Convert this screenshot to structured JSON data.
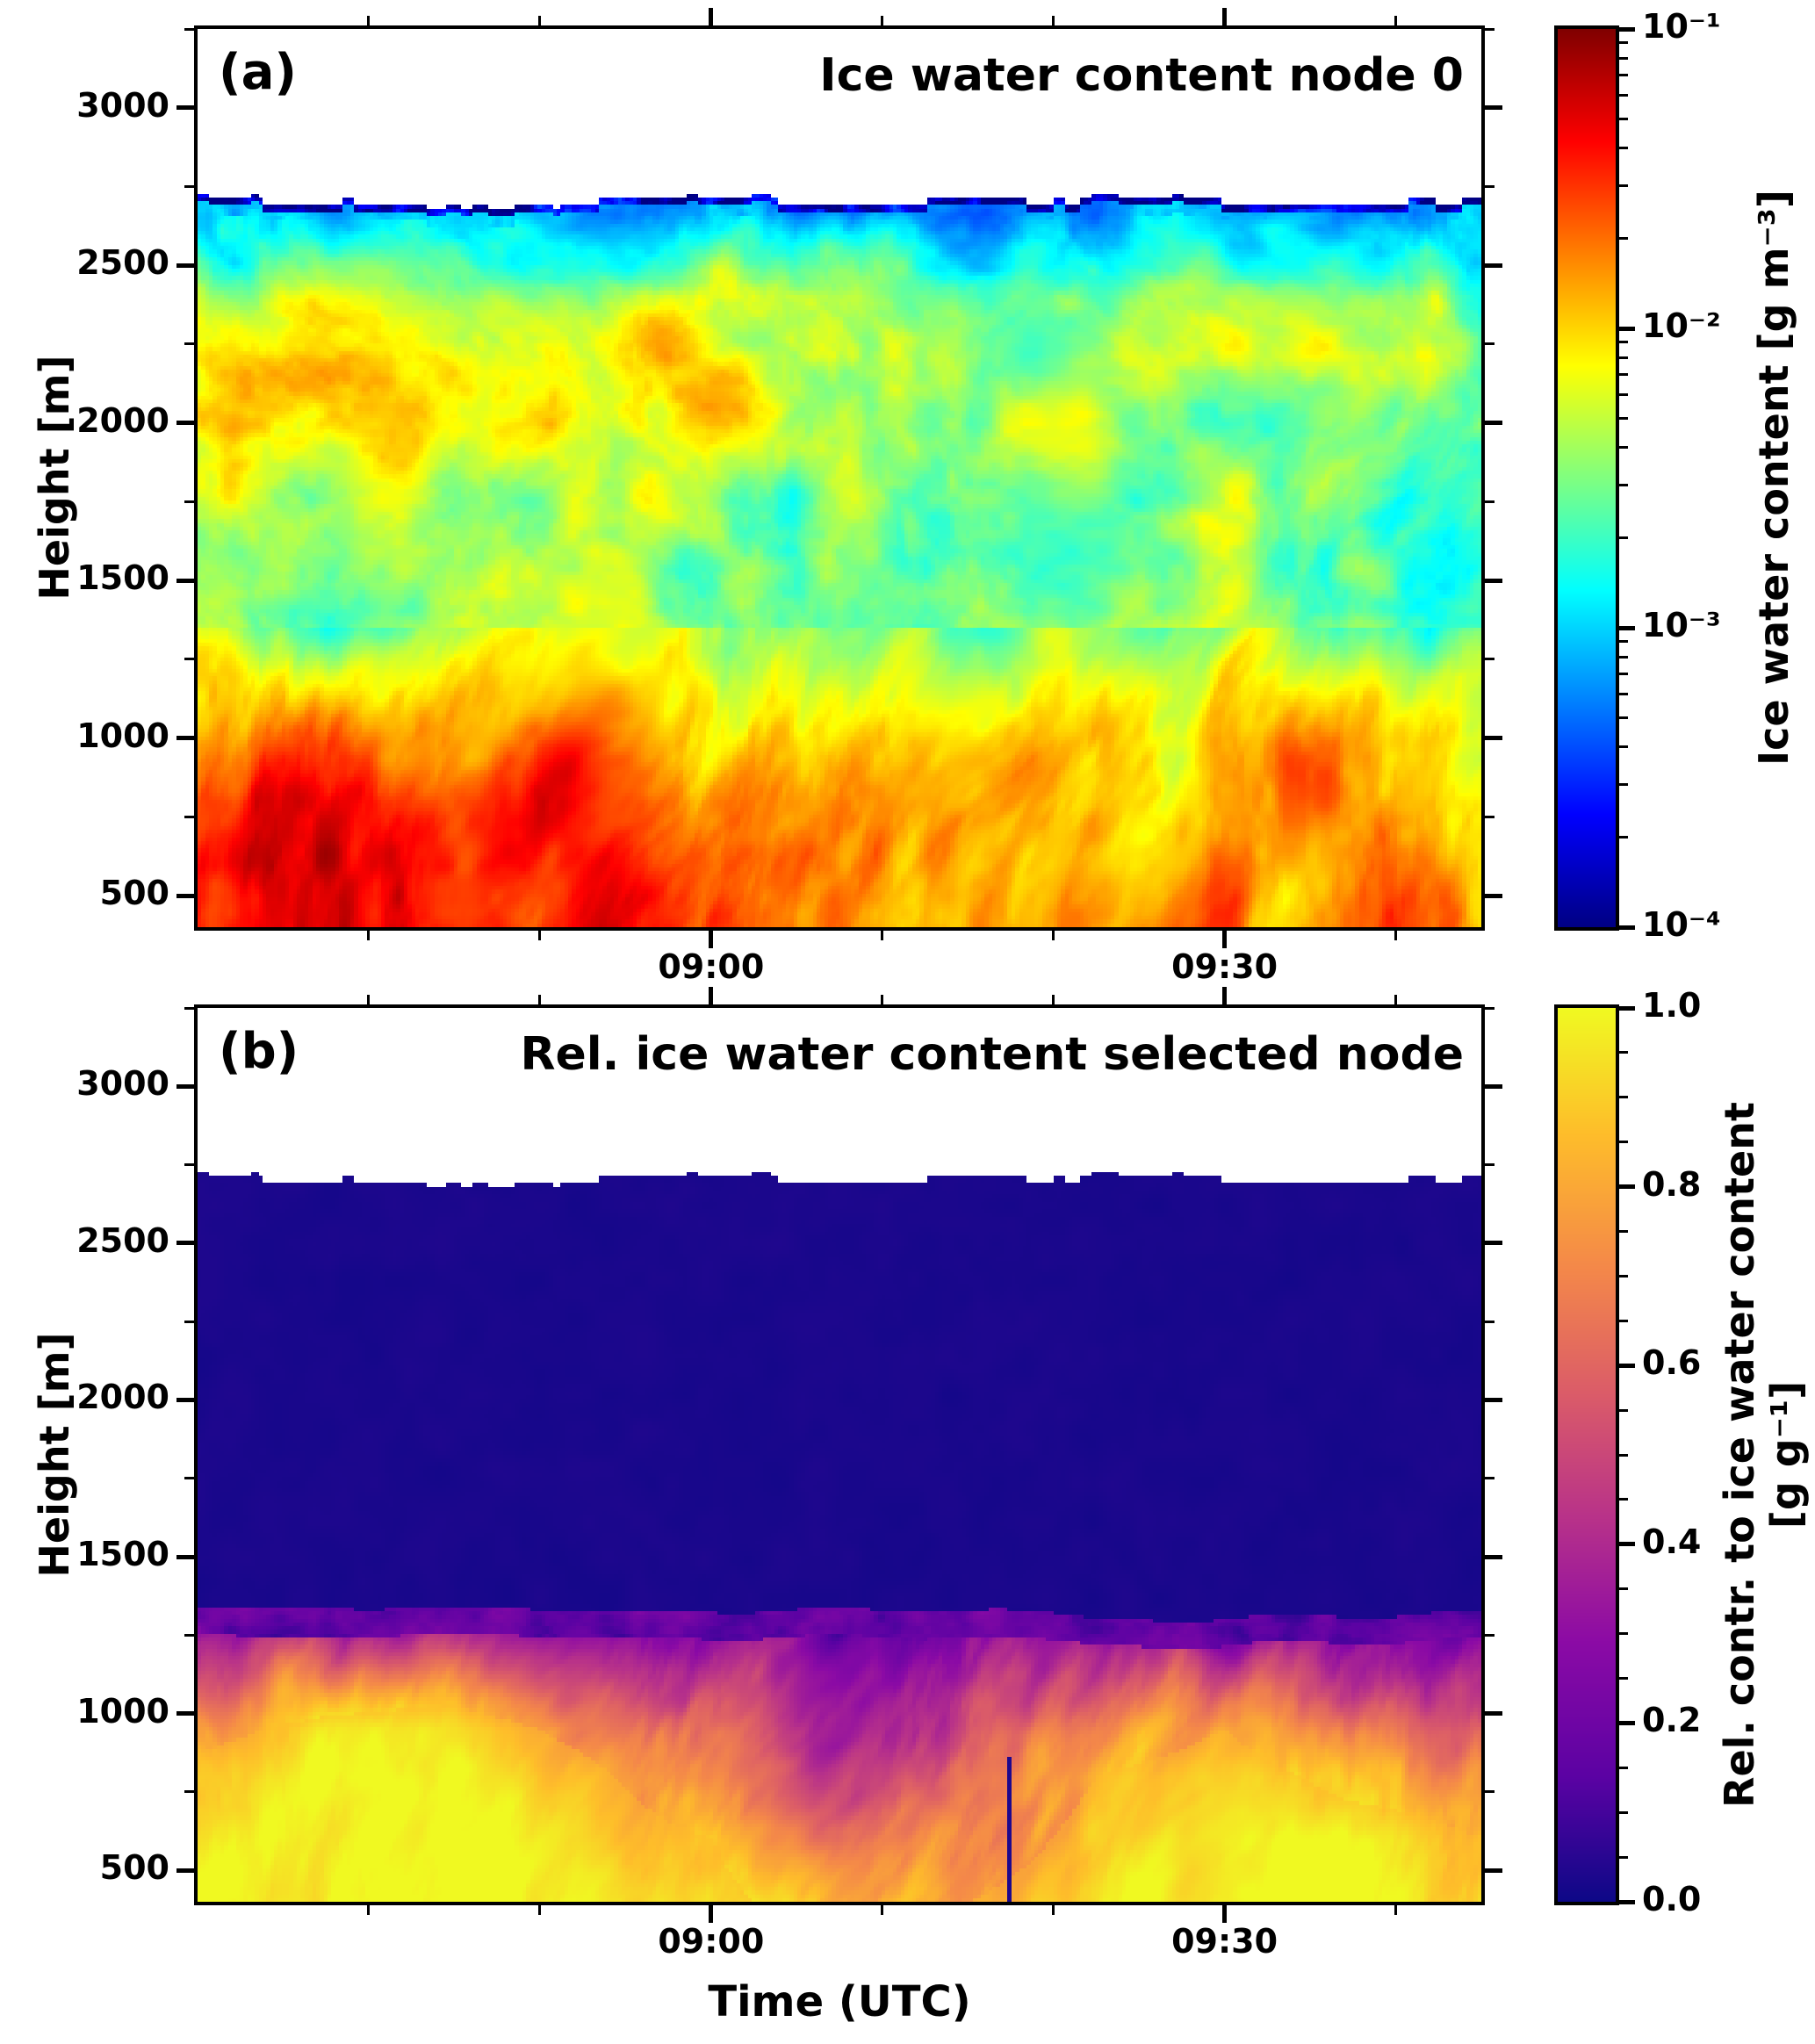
{
  "figure": {
    "background": "#ffffff"
  },
  "x_axis_label": "Time  (UTC)",
  "chart_data": [
    {
      "type": "heatmap",
      "panel_label": "(a)",
      "title": "Ice water content node 0",
      "ylabel": "Height [m]",
      "x_axis": {
        "start_utc": "08:30",
        "end_utc": "09:45",
        "total_minutes": 75,
        "major_ticks": [
          {
            "minutes": 30,
            "label": "09:00"
          },
          {
            "minutes": 60,
            "label": "09:30"
          }
        ],
        "minor_ticks_minutes": [
          10,
          20,
          40,
          50,
          70
        ]
      },
      "y_axis": {
        "lim_m": [
          400,
          3250
        ],
        "major_ticks_m": [
          500,
          1000,
          1500,
          2000,
          2500,
          3000
        ],
        "minor_step_m": 250
      },
      "cloud_top_m": 2700,
      "colorbar": {
        "label": "Ice water content [g m⁻³]",
        "scale": "log10",
        "tick_labels": [
          "10⁻¹",
          "10⁻²",
          "10⁻³",
          "10⁻⁴"
        ],
        "tick_values_log10": [
          -1,
          -2,
          -3,
          -4
        ],
        "vmin_log10": -4,
        "vmax_log10": -1,
        "colormap": "jet",
        "stops": [
          [
            0,
            "#000083"
          ],
          [
            0.125,
            "#0000ff"
          ],
          [
            0.375,
            "#00ffff"
          ],
          [
            0.625,
            "#ffff00"
          ],
          [
            0.875,
            "#ff0000"
          ],
          [
            1,
            "#800000"
          ]
        ]
      },
      "field": {
        "units": "log10(g m-3)",
        "times_min": [
          0,
          7.5,
          15,
          22.5,
          30,
          37.5,
          45,
          52.5,
          60,
          67.5,
          75
        ],
        "heights_m": [
          400,
          600,
          800,
          1000,
          1200,
          1400,
          1600,
          1800,
          2000,
          2200,
          2400,
          2550,
          2660
        ],
        "values": [
          [
            -1.25,
            -1.2,
            -1.25,
            -1.3,
            -1.55,
            -1.7,
            -1.8,
            -1.75,
            -1.8,
            -1.8,
            -1.85
          ],
          [
            -1.3,
            -1.2,
            -1.25,
            -1.35,
            -1.6,
            -1.75,
            -1.85,
            -1.8,
            -1.75,
            -1.85,
            -1.9
          ],
          [
            -1.5,
            -1.35,
            -1.4,
            -1.5,
            -1.7,
            -1.85,
            -1.95,
            -1.9,
            -1.8,
            -1.85,
            -1.95
          ],
          [
            -1.8,
            -1.7,
            -1.75,
            -1.8,
            -1.95,
            -2.05,
            -2.05,
            -2.0,
            -1.85,
            -1.95,
            -2.05
          ],
          [
            -2.1,
            -2.15,
            -2.1,
            -2.15,
            -2.2,
            -2.3,
            -2.3,
            -2.2,
            -2.15,
            -2.2,
            -2.3
          ],
          [
            -2.55,
            -2.8,
            -2.5,
            -2.4,
            -2.45,
            -2.55,
            -2.6,
            -2.5,
            -2.45,
            -2.55,
            -2.85
          ],
          [
            -2.5,
            -2.6,
            -2.45,
            -2.4,
            -2.45,
            -2.55,
            -2.65,
            -2.55,
            -2.5,
            -2.6,
            -2.85
          ],
          [
            -2.3,
            -2.4,
            -2.3,
            -2.3,
            -2.35,
            -2.45,
            -2.55,
            -2.45,
            -2.45,
            -2.5,
            -2.7
          ],
          [
            -2.1,
            -2.2,
            -2.05,
            -2.2,
            -2.1,
            -2.3,
            -2.45,
            -2.35,
            -2.4,
            -2.35,
            -2.6
          ],
          [
            -2.15,
            -2.0,
            -2.2,
            -2.25,
            -1.95,
            -2.25,
            -2.5,
            -2.4,
            -2.3,
            -2.25,
            -2.5
          ],
          [
            -2.35,
            -2.25,
            -2.4,
            -2.45,
            -2.15,
            -2.4,
            -2.6,
            -2.5,
            -2.45,
            -2.35,
            -2.55
          ],
          [
            -2.7,
            -2.75,
            -2.7,
            -2.75,
            -2.7,
            -2.8,
            -2.9,
            -2.85,
            -2.8,
            -2.7,
            -2.8
          ],
          [
            -3.0,
            -3.1,
            -3.0,
            -3.05,
            -3.0,
            -3.1,
            -3.15,
            -3.1,
            -3.1,
            -3.0,
            -3.05
          ]
        ]
      }
    },
    {
      "type": "heatmap",
      "panel_label": "(b)",
      "title": "Rel. ice water content selected node",
      "ylabel": "Height [m]",
      "x_axis": {
        "start_utc": "08:30",
        "end_utc": "09:45",
        "total_minutes": 75,
        "major_ticks": [
          {
            "minutes": 30,
            "label": "09:00"
          },
          {
            "minutes": 60,
            "label": "09:30"
          }
        ],
        "minor_ticks_minutes": [
          10,
          20,
          40,
          50,
          70
        ]
      },
      "y_axis": {
        "lim_m": [
          400,
          3250
        ],
        "major_ticks_m": [
          500,
          1000,
          1500,
          2000,
          2500,
          3000
        ],
        "minor_step_m": 250
      },
      "cloud_top_m": 2700,
      "selected_node_boundary_m": 1330,
      "dark_line": {
        "time_min": 47.4,
        "max_height_m": 860
      },
      "colorbar": {
        "label_line1": "Rel. contr. to ice water content",
        "label_line2": "[g g⁻¹]",
        "scale": "linear",
        "tick_labels": [
          "1.0",
          "0.8",
          "0.6",
          "0.4",
          "0.2",
          "0.0"
        ],
        "tick_values": [
          1.0,
          0.8,
          0.6,
          0.4,
          0.2,
          0.0
        ],
        "vmin": 0.0,
        "vmax": 1.0,
        "colormap": "plasma",
        "stops": [
          [
            0,
            "#0d0887"
          ],
          [
            0.14,
            "#5b02a3"
          ],
          [
            0.29,
            "#8b0aa5"
          ],
          [
            0.43,
            "#b83289"
          ],
          [
            0.57,
            "#db5c68"
          ],
          [
            0.71,
            "#f48849"
          ],
          [
            0.86,
            "#febd2a"
          ],
          [
            1,
            "#f0f921"
          ]
        ]
      },
      "field": {
        "units": "g g-1",
        "times_min": [
          0,
          7.5,
          15,
          22.5,
          30,
          37.5,
          45,
          52.5,
          60,
          67.5,
          75
        ],
        "heights_m": [
          400,
          600,
          800,
          950,
          1050,
          1150,
          1250,
          1320,
          1400,
          2000,
          2700
        ],
        "values": [
          [
            1.0,
            1.0,
            1.0,
            1.0,
            0.92,
            0.7,
            0.85,
            0.97,
            1.0,
            1.0,
            0.92
          ],
          [
            0.97,
            1.0,
            1.0,
            0.95,
            0.85,
            0.55,
            0.72,
            0.92,
            1.0,
            0.95,
            0.85
          ],
          [
            0.9,
            0.97,
            1.0,
            0.9,
            0.7,
            0.5,
            0.6,
            0.85,
            0.95,
            0.78,
            0.75
          ],
          [
            0.8,
            0.9,
            0.95,
            0.8,
            0.6,
            0.45,
            0.5,
            0.7,
            0.85,
            0.6,
            0.65
          ],
          [
            0.65,
            0.78,
            0.82,
            0.65,
            0.5,
            0.4,
            0.45,
            0.55,
            0.7,
            0.45,
            0.55
          ],
          [
            0.5,
            0.6,
            0.62,
            0.5,
            0.4,
            0.32,
            0.36,
            0.42,
            0.52,
            0.36,
            0.42
          ],
          [
            0.35,
            0.4,
            0.45,
            0.35,
            0.28,
            0.22,
            0.25,
            0.3,
            0.33,
            0.27,
            0.3
          ],
          [
            0.15,
            0.18,
            0.2,
            0.15,
            0.12,
            0.1,
            0.11,
            0.13,
            0.14,
            0.12,
            0.13
          ],
          [
            0.02,
            0.02,
            0.02,
            0.02,
            0.02,
            0.02,
            0.02,
            0.02,
            0.02,
            0.02,
            0.02
          ],
          [
            0.015,
            0.015,
            0.015,
            0.015,
            0.015,
            0.015,
            0.015,
            0.015,
            0.015,
            0.015,
            0.015
          ],
          [
            0.015,
            0.015,
            0.015,
            0.015,
            0.015,
            0.015,
            0.015,
            0.015,
            0.015,
            0.015,
            0.015
          ]
        ]
      }
    }
  ]
}
